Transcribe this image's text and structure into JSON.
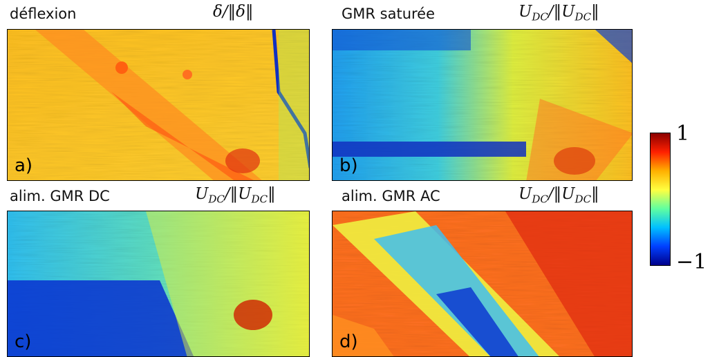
{
  "panels": [
    {
      "title": "déflexion",
      "formula": [
        [
          "δ/‖δ‖"
        ]
      ],
      "letter": "a)"
    },
    {
      "title": "GMR saturée",
      "formula": [
        [
          "U",
          "DC"
        ],
        [
          "/‖U",
          "DC"
        ],
        [
          "‖"
        ]
      ],
      "letter": "b)"
    },
    {
      "title": "alim. GMR DC",
      "formula": [
        [
          "U",
          "DC"
        ],
        [
          "/‖U",
          "DC"
        ],
        [
          "‖"
        ]
      ],
      "letter": "c)"
    },
    {
      "title": "alim. GMR AC",
      "formula": [
        [
          "U",
          "DC"
        ],
        [
          "/‖U",
          "DC"
        ],
        [
          "‖"
        ]
      ],
      "letter": "d)"
    }
  ],
  "colorbar": {
    "max_label": "1",
    "min_label": "−1"
  }
}
